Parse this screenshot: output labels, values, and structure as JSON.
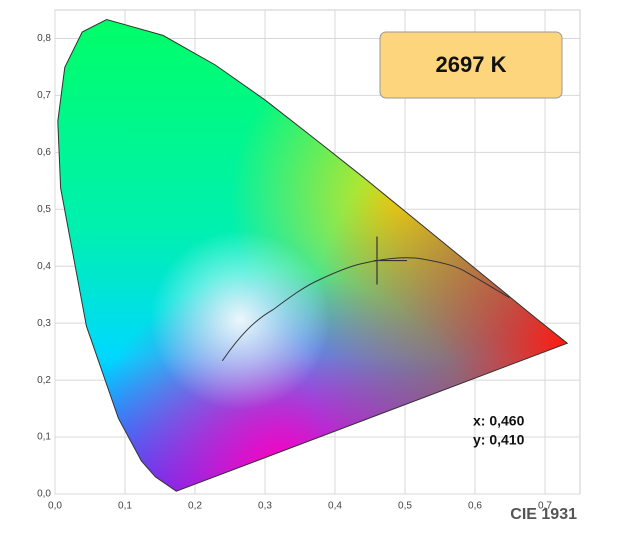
{
  "chart_data": {
    "type": "scatter",
    "annotation": "2697 K",
    "readout": [
      "x: 0,460",
      "y: 0,410"
    ],
    "footer": "CIE 1931",
    "x": [
      0.46
    ],
    "values": [
      0.41
    ],
    "color": "#333333",
    "xlim": [
      0,
      0.75
    ],
    "ylim": [
      0,
      0.85
    ],
    "xticks": [
      {
        "value": 0,
        "label": "0,0"
      },
      {
        "value": 0.1,
        "label": "0,1"
      },
      {
        "value": 0.2,
        "label": "0,2"
      },
      {
        "value": 0.3,
        "label": "0,3"
      },
      {
        "value": 0.4,
        "label": "0,4"
      },
      {
        "value": 0.5,
        "label": "0,5"
      },
      {
        "value": 0.6,
        "label": "0,6"
      },
      {
        "value": 0.7,
        "label": "0,7"
      }
    ],
    "yticks": [
      {
        "value": 0,
        "label": "0,0"
      },
      {
        "value": 0.1,
        "label": "0,1"
      },
      {
        "value": 0.2,
        "label": "0,2"
      },
      {
        "value": 0.3,
        "label": "0,3"
      },
      {
        "value": 0.4,
        "label": "0,4"
      },
      {
        "value": 0.5,
        "label": "0,5"
      },
      {
        "value": 0.6,
        "label": "0,6"
      },
      {
        "value": 0.7,
        "label": "0,7"
      },
      {
        "value": 0.8,
        "label": "0,8"
      }
    ],
    "grid": true
  }
}
